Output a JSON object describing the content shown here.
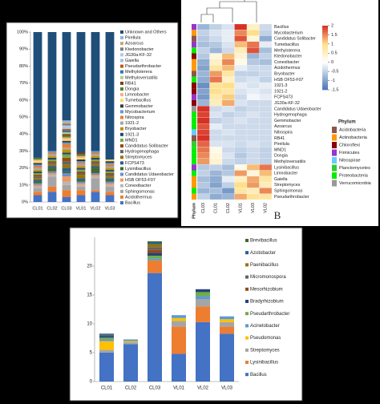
{
  "chart_data": [
    {
      "type": "stacked_bar",
      "categories": [
        "CL01",
        "CL02",
        "CL03",
        "VL01",
        "VL02",
        "VL03"
      ],
      "ylim": [
        0,
        100
      ],
      "yticks": [
        {
          "value": 0,
          "label": "0%"
        },
        {
          "value": 10,
          "label": "10%"
        },
        {
          "value": 20,
          "label": "20%"
        },
        {
          "value": 30,
          "label": "30%"
        },
        {
          "value": 40,
          "label": "40%"
        },
        {
          "value": 50,
          "label": "50%"
        },
        {
          "value": 60,
          "label": "60%"
        },
        {
          "value": 70,
          "label": "70%"
        },
        {
          "value": 80,
          "label": "80%"
        },
        {
          "value": 90,
          "label": "90%"
        },
        {
          "value": 100,
          "label": "100%"
        }
      ],
      "series": [
        {
          "name": "Unknown and Others",
          "color": "#1f4e79",
          "values": [
            74,
            70,
            52,
            71,
            70,
            75
          ]
        },
        {
          "name": "Pirellula",
          "color": "#8fb4e3",
          "values": [
            0,
            0,
            1,
            0,
            0,
            0
          ]
        },
        {
          "name": "Azoarcus",
          "color": "#c9a86a",
          "values": [
            0,
            0,
            1,
            0,
            0,
            0
          ]
        },
        {
          "name": "Ktedonobacter",
          "color": "#7f7f7f",
          "values": [
            0,
            0,
            1,
            0,
            0,
            0
          ]
        },
        {
          "name": "JG30a-KF-32",
          "color": "#b4c7e7",
          "values": [
            0,
            0,
            1,
            0,
            0,
            0
          ]
        },
        {
          "name": "Gaiella",
          "color": "#9dc3e6",
          "values": [
            0,
            0,
            1,
            0,
            0,
            0
          ]
        },
        {
          "name": "Pseudarthrobacter",
          "color": "#c55a11",
          "values": [
            0,
            0,
            1,
            0,
            0,
            0
          ]
        },
        {
          "name": "Methyloterera",
          "color": "#2e75b6",
          "values": [
            0,
            0,
            1,
            0,
            0,
            0
          ]
        },
        {
          "name": "Methyloversatilis",
          "color": "#a9d18e",
          "values": [
            0,
            0,
            1,
            0,
            0,
            0
          ]
        },
        {
          "name": "RB41",
          "color": "#843c0c",
          "values": [
            0,
            0,
            1,
            1,
            0,
            0
          ]
        },
        {
          "name": "Dongia",
          "color": "#548235",
          "values": [
            1,
            0,
            1,
            1,
            0,
            0
          ]
        },
        {
          "name": "Limnobacter",
          "color": "#f4b183",
          "values": [
            1,
            0,
            1,
            1,
            0,
            0
          ]
        },
        {
          "name": "Tumebacillus",
          "color": "#ffd966",
          "values": [
            1,
            0,
            1,
            1,
            0,
            1
          ]
        },
        {
          "name": "Gemmobacter",
          "color": "#3b3838",
          "values": [
            1,
            0,
            1,
            1,
            0,
            1
          ]
        },
        {
          "name": "Mycobacterium",
          "color": "#5b9bd5",
          "values": [
            1,
            1,
            1,
            1,
            1,
            1
          ]
        },
        {
          "name": "Nitrospira",
          "color": "#ed7d31",
          "values": [
            1,
            1,
            2,
            1,
            1,
            1
          ]
        },
        {
          "name": "1921-2",
          "color": "#a5a5a5",
          "values": [
            1,
            1,
            1,
            1,
            1,
            1
          ]
        },
        {
          "name": "Bryobacter",
          "color": "#bf9000",
          "values": [
            1,
            1,
            2,
            1,
            1,
            1
          ]
        },
        {
          "name": "1921-3",
          "color": "#264478",
          "values": [
            1,
            1,
            1,
            1,
            1,
            1
          ]
        },
        {
          "name": "MND1",
          "color": "#70ad47",
          "values": [
            1,
            1,
            2,
            1,
            1,
            1
          ]
        },
        {
          "name": "Candidatus Solibacter",
          "color": "#9e480e",
          "values": [
            1,
            1,
            2,
            1,
            1,
            1
          ]
        },
        {
          "name": "Hydrogenophaga",
          "color": "#636363",
          "values": [
            1,
            1,
            2,
            1,
            1,
            1
          ]
        },
        {
          "name": "Streptomyces",
          "color": "#997300",
          "values": [
            1,
            1,
            2,
            2,
            1,
            1
          ]
        },
        {
          "name": "FCPS473",
          "color": "#255e91",
          "values": [
            1,
            1,
            2,
            1,
            1,
            1
          ]
        },
        {
          "name": "Lysinibacillus",
          "color": "#43682b",
          "values": [
            1,
            2,
            1,
            1,
            3,
            1
          ]
        },
        {
          "name": "Candidatus Udaeobacter",
          "color": "#698ed0",
          "values": [
            1,
            1,
            2,
            1,
            1,
            1
          ]
        },
        {
          "name": "HSB OF53-F07",
          "color": "#f1975a",
          "values": [
            1,
            1,
            3,
            1,
            1,
            1
          ]
        },
        {
          "name": "Conexibacter",
          "color": "#b7b7b7",
          "values": [
            1,
            1,
            2,
            1,
            1,
            1
          ]
        },
        {
          "name": "Sphingomonas",
          "color": "#a5a5a5",
          "values": [
            2,
            6,
            3,
            2,
            7,
            3
          ]
        },
        {
          "name": "Acidothermus",
          "color": "#ed7d31",
          "values": [
            2,
            3,
            4,
            3,
            1,
            2
          ]
        },
        {
          "name": "Bacillus",
          "color": "#4472c4",
          "values": [
            4,
            6,
            3,
            4,
            6,
            4
          ]
        }
      ]
    },
    {
      "type": "heatmap",
      "annotation": "B",
      "phylum_title": "Phylum",
      "columns": [
        "CL03",
        "CL01",
        "CL02",
        "VL01",
        "VL03",
        "VL02"
      ],
      "rows": [
        "Bacillus",
        "Mycobacterium",
        "Candidatus Solibacter",
        "Tumebacillus",
        "Methyloterera",
        "Ktedonobacter",
        "Conexibacter",
        "Acidothermus",
        "Bryobacter",
        "HSB OF53-F07",
        "1921-3",
        "1921-2",
        "FCPS473",
        "JG30a-KF-32",
        "Candidatus Udaeobacter",
        "Hydrogenophaga",
        "Gemmobacter",
        "Azoarcus",
        "Nitrospira",
        "RB41",
        "Pirellula",
        "MND1",
        "Dongia",
        "Methyloversatilis",
        "Lysinibacillus",
        "Limnobacter",
        "Gaiella",
        "Streptomyces",
        "Sphingomonas",
        "Pseudarthrobacter"
      ],
      "values": [
        [
          -0.8,
          -0.5,
          -0.3,
          2,
          0.5,
          -0.4
        ],
        [
          -0.5,
          -0.3,
          -0.2,
          1.5,
          1,
          -0.5
        ],
        [
          -0.6,
          -0.4,
          -0.2,
          1.8,
          0.3,
          -0.9
        ],
        [
          -0.7,
          -0.6,
          -0.3,
          1.2,
          1.6,
          -0.2
        ],
        [
          -0.5,
          -0.8,
          -0.4,
          0.6,
          1.8,
          -0.7
        ],
        [
          -0.6,
          0.3,
          1.2,
          0.4,
          -0.8,
          -0.5
        ],
        [
          -0.9,
          0.5,
          1.5,
          0.2,
          -0.6,
          -0.7
        ],
        [
          -1,
          0.8,
          1.2,
          -0.2,
          -0.4,
          -0.4
        ],
        [
          -0.8,
          1.4,
          0.8,
          -0.5,
          -0.5,
          -0.4
        ],
        [
          -0.9,
          1.6,
          0.5,
          -0.4,
          -0.3,
          -0.5
        ],
        [
          -1.2,
          0.9,
          1,
          -0.2,
          -0.3,
          -0.2
        ],
        [
          -1,
          1,
          0.8,
          -0.3,
          -0.2,
          -0.3
        ],
        [
          -1.1,
          0.7,
          1.1,
          -0.4,
          -0.1,
          -0.2
        ],
        [
          -0.8,
          0.6,
          1.3,
          -0.3,
          -0.4,
          -0.4
        ],
        [
          2,
          -0.4,
          -0.3,
          -0.5,
          -0.4,
          -0.4
        ],
        [
          1.9,
          -0.3,
          -0.5,
          -0.4,
          -0.3,
          -0.4
        ],
        [
          2,
          -0.5,
          -0.4,
          -0.3,
          -0.4,
          -0.4
        ],
        [
          1.8,
          -0.2,
          -0.4,
          -0.4,
          -0.4,
          -0.4
        ],
        [
          1.9,
          -0.4,
          -0.3,
          -0.4,
          -0.4,
          -0.4
        ],
        [
          2,
          -0.4,
          -0.4,
          -0.4,
          -0.4,
          -0.4
        ],
        [
          1.7,
          -0.3,
          -0.3,
          -0.4,
          -0.3,
          -0.4
        ],
        [
          1.6,
          0.2,
          -0.4,
          -0.5,
          -0.4,
          -0.5
        ],
        [
          1.5,
          0.3,
          -0.3,
          -0.6,
          -0.4,
          -0.5
        ],
        [
          1.4,
          0.4,
          -0.4,
          -0.5,
          -0.4,
          -0.5
        ],
        [
          -0.6,
          -0.5,
          -0.7,
          0.2,
          1.2,
          1.6
        ],
        [
          -0.5,
          -0.8,
          -0.6,
          1.4,
          0.3,
          1.2
        ],
        [
          -0.7,
          -0.9,
          -0.2,
          0.5,
          1.3,
          0.8
        ],
        [
          -0.6,
          -1,
          -0.5,
          1,
          1.4,
          0.6
        ],
        [
          -0.8,
          -0.7,
          -1.1,
          0.8,
          0.6,
          1.5
        ],
        [
          -0.5,
          -0.9,
          -0.8,
          1.3,
          0.9,
          0.8
        ]
      ],
      "row_phylum": [
        "Firmicutes",
        "Actinobacteria",
        "Acidobacteria",
        "Firmicutes",
        "Proteobacteria",
        "Chloroflexi",
        "Actinobacteria",
        "Actinobacteria",
        "Acidobacteria",
        "Proteobacteria",
        "Chloroflexi",
        "Chloroflexi",
        "Firmicutes",
        "Chloroflexi",
        "Verrucomicrobia",
        "Proteobacteria",
        "Proteobacteria",
        "Proteobacteria",
        "Nitrospirae",
        "Acidobacteria",
        "Planctomycetes",
        "Proteobacteria",
        "Proteobacteria",
        "Proteobacteria",
        "Firmicutes",
        "Proteobacteria",
        "Actinobacteria",
        "Actinobacteria",
        "Proteobacteria",
        "Actinobacteria"
      ],
      "clim": [
        -1.5,
        2
      ],
      "cticks": [
        2,
        1.5,
        1,
        0.5,
        0,
        -0.5,
        -1,
        -1.5
      ],
      "colors": [
        "#4575b4",
        "#ffffff",
        "#fee08b",
        "#d73027"
      ],
      "phyla": [
        {
          "name": "Acidobacteria",
          "color": "#8c564b"
        },
        {
          "name": "Actinobacteria",
          "color": "#ff9900"
        },
        {
          "name": "Chloroflexi",
          "color": "#8b0000"
        },
        {
          "name": "Firmicutes",
          "color": "#9933cc"
        },
        {
          "name": "Nitrospirae",
          "color": "#66ccff"
        },
        {
          "name": "Planctomycetes",
          "color": "#33cc33"
        },
        {
          "name": "Proteobacteria",
          "color": "#00ee00"
        },
        {
          "name": "Verrucomicrobia",
          "color": "#999999"
        }
      ]
    },
    {
      "type": "stacked_bar",
      "categories": [
        "CL01",
        "CL02",
        "CL03",
        "VL01",
        "VL02",
        "VL03"
      ],
      "ylim": [
        0,
        25
      ],
      "yticks": [
        0,
        5,
        10,
        15,
        20
      ],
      "series": [
        {
          "name": "Brevibacillus",
          "color": "#43682b",
          "values": [
            0,
            0,
            0.2,
            0,
            0,
            0
          ]
        },
        {
          "name": "Azotobacter",
          "color": "#255e91",
          "values": [
            0.2,
            0,
            0.3,
            0,
            0,
            0
          ]
        },
        {
          "name": "Paenibacillus",
          "color": "#997300",
          "values": [
            0,
            0,
            0.5,
            0,
            0,
            0
          ]
        },
        {
          "name": "Micromonospora",
          "color": "#636363",
          "values": [
            0.2,
            0,
            0.5,
            0,
            0,
            0
          ]
        },
        {
          "name": "Mesorhizobium",
          "color": "#9e480e",
          "values": [
            0,
            0,
            0.5,
            0,
            0,
            0
          ]
        },
        {
          "name": "Bradyrhizobium",
          "color": "#264478",
          "values": [
            0.3,
            0,
            0.5,
            0,
            0.5,
            0
          ]
        },
        {
          "name": "Pseudarthrobacter",
          "color": "#70ad47",
          "values": [
            0.3,
            0,
            0.5,
            0,
            0.7,
            0
          ]
        },
        {
          "name": "Acinetobacter",
          "color": "#5b9bd5",
          "values": [
            0.3,
            0.3,
            0.3,
            0.5,
            0.5,
            0.5
          ]
        },
        {
          "name": "Pseudomonas",
          "color": "#ffc000",
          "values": [
            1.5,
            0.2,
            0,
            0.5,
            0,
            0.5
          ]
        },
        {
          "name": "Streptomyces",
          "color": "#a5a5a5",
          "values": [
            0.5,
            0.3,
            0,
            1,
            1.3,
            0.8
          ]
        },
        {
          "name": "Lysinibacillus",
          "color": "#ed7d31",
          "values": [
            0,
            0,
            2.2,
            4.7,
            2.7,
            1.2
          ]
        },
        {
          "name": "Bacillus",
          "color": "#4472c4",
          "values": [
            5,
            6.5,
            18.8,
            4.8,
            10.3,
            8.3
          ]
        }
      ]
    }
  ]
}
